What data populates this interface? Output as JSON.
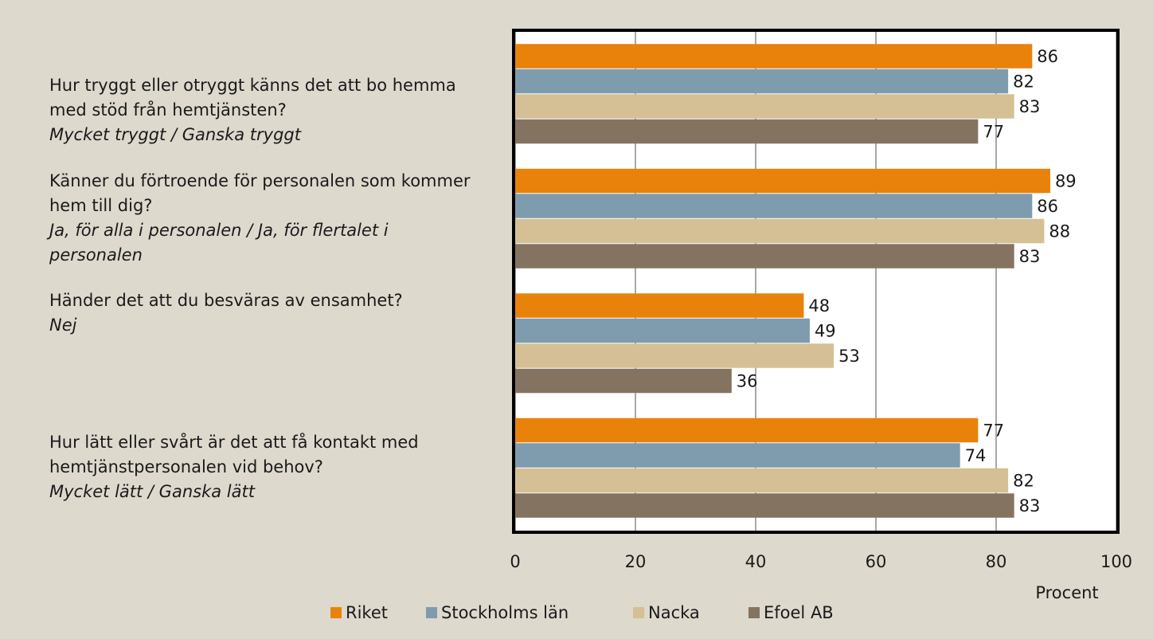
{
  "chart_data": {
    "type": "barh",
    "categories": [
      "Hur tryggt eller otryggt känns det att bo hemma med stöd från hemtjänsten?",
      "Känner du förtroende för personalen som kommer hem till dig?",
      "Händer det att du besväras av ensamhet?",
      "Hur lätt eller svårt är det att få kontakt med hemtjänstpersonalen vid behov?"
    ],
    "category_answers": [
      "Mycket tryggt / Ganska tryggt",
      "Ja, för alla i personalen / Ja, för flertalet i personalen",
      "Nej",
      "Mycket lätt / Ganska lätt"
    ],
    "series": [
      {
        "name": "Riket",
        "color": "#e8820a",
        "values": [
          86,
          89,
          48,
          77
        ]
      },
      {
        "name": "Stockholms län",
        "color": "#7f9cae",
        "values": [
          82,
          86,
          49,
          74
        ]
      },
      {
        "name": "Nacka",
        "color": "#d4c094",
        "values": [
          83,
          88,
          53,
          82
        ]
      },
      {
        "name": "Efoel AB",
        "color": "#857362",
        "values": [
          77,
          83,
          36,
          83
        ]
      }
    ],
    "xlabel": "Procent",
    "xlim": [
      0,
      100
    ],
    "xticks": [
      0,
      20,
      40,
      60,
      80,
      100
    ],
    "grid": true,
    "legend": "bottom"
  }
}
